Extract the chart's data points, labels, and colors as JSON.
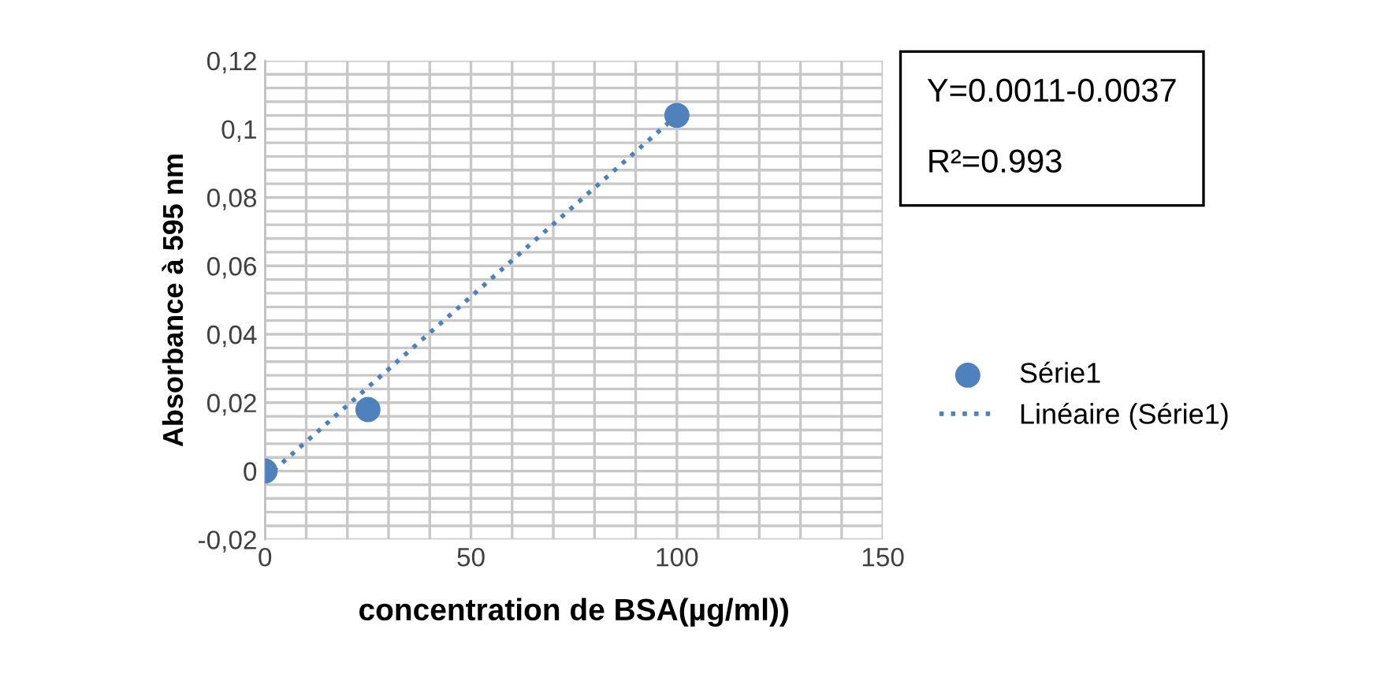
{
  "chart_data": {
    "type": "scatter",
    "xlabel": "concentration de BSA(µg/ml))",
    "ylabel": "Absorbance à 595 nm",
    "series": [
      {
        "name": "Série1",
        "color": "#4f81bd",
        "x": [
          0,
          25,
          100
        ],
        "values": [
          0,
          0.018,
          0.104
        ],
        "marker": "circle"
      },
      {
        "name": "Linéaire (Série1)",
        "type": "line",
        "color": "#4f81bd",
        "x": [
          0,
          100
        ],
        "values": [
          -0.002,
          0.104
        ],
        "line_style": "dotted",
        "marker": "none"
      }
    ],
    "xlim": [
      0,
      150
    ],
    "xticks": [
      0,
      50,
      100,
      150
    ],
    "ylim": [
      -0.02,
      0.12
    ],
    "yticks": [
      {
        "value": -0.02,
        "label": "-0,02"
      },
      {
        "value": 0,
        "label": "0"
      },
      {
        "value": 0.02,
        "label": "0,02"
      },
      {
        "value": 0.04,
        "label": "0,04"
      },
      {
        "value": 0.06,
        "label": "0,06"
      },
      {
        "value": 0.08,
        "label": "0,08"
      },
      {
        "value": 0.1,
        "label": "0,1"
      },
      {
        "value": 0.12,
        "label": "0,12"
      }
    ],
    "grid": true,
    "legend": "right",
    "annotations": [
      "Y=0.0011-0.0037",
      "R²=0.993"
    ]
  }
}
